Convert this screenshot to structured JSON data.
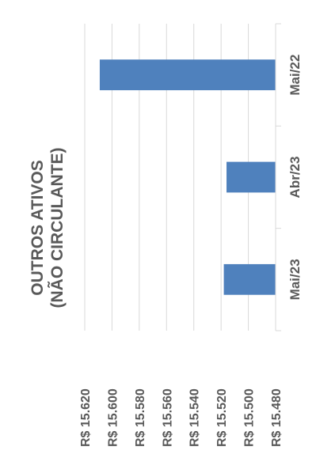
{
  "chart_data": {
    "type": "bar",
    "orientation": "horizontal",
    "rotation": "90deg-counterclockwise",
    "title_lines": [
      "OUTROS ATIVOS",
      "(NÃO CIRCULANTE)"
    ],
    "categories": [
      "Mai/23",
      "Abr/23",
      "Mai/22"
    ],
    "values": [
      15518,
      15516,
      15609
    ],
    "ylim": [
      15480,
      15620
    ],
    "ticks": [
      15620,
      15600,
      15580,
      15560,
      15540,
      15520,
      15500,
      15480
    ],
    "tick_labels": [
      "R$ 15.620",
      "R$ 15.600",
      "R$ 15.580",
      "R$ 15.560",
      "R$ 15.540",
      "R$ 15.520",
      "R$ 15.500",
      "R$ 15.480"
    ],
    "grid": true,
    "legend": "none",
    "bar_color": "#4f81bd",
    "grid_color": "#d9d9d9",
    "text_color": "#595959"
  }
}
